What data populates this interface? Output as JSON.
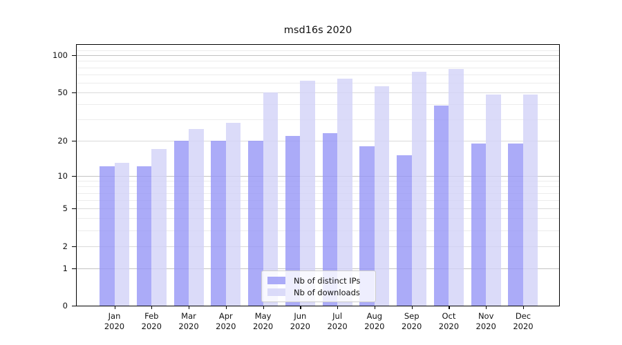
{
  "chart_data": {
    "type": "bar",
    "title": "msd16s 2020",
    "categories": [
      "Jan",
      "Feb",
      "Mar",
      "Apr",
      "May",
      "Jun",
      "Jul",
      "Aug",
      "Sep",
      "Oct",
      "Nov",
      "Dec"
    ],
    "x_year_line": "2020",
    "series": [
      {
        "name": "Nb of distinct IPs",
        "color": "#9696f6",
        "values": [
          12,
          12,
          20,
          20,
          20,
          22,
          23,
          18,
          15,
          39,
          19,
          19
        ]
      },
      {
        "name": "Nb of downloads",
        "color": "#d2d2f7",
        "values": [
          13,
          17,
          25,
          28,
          50,
          62,
          65,
          56,
          74,
          78,
          48,
          48
        ]
      }
    ],
    "xlabel": "",
    "ylabel": "",
    "y_scale": "log1p",
    "y_major_ticks": [
      0,
      1,
      2,
      5,
      10,
      20,
      50,
      100
    ],
    "y_decade_gridlines": [
      1,
      10,
      100
    ],
    "y_minor_gridlines": [
      3,
      4,
      6,
      7,
      8,
      9,
      30,
      40,
      60,
      70,
      80,
      90,
      110
    ],
    "ylim": [
      0,
      121
    ],
    "grid": true,
    "legend_position": "bottom-center"
  }
}
